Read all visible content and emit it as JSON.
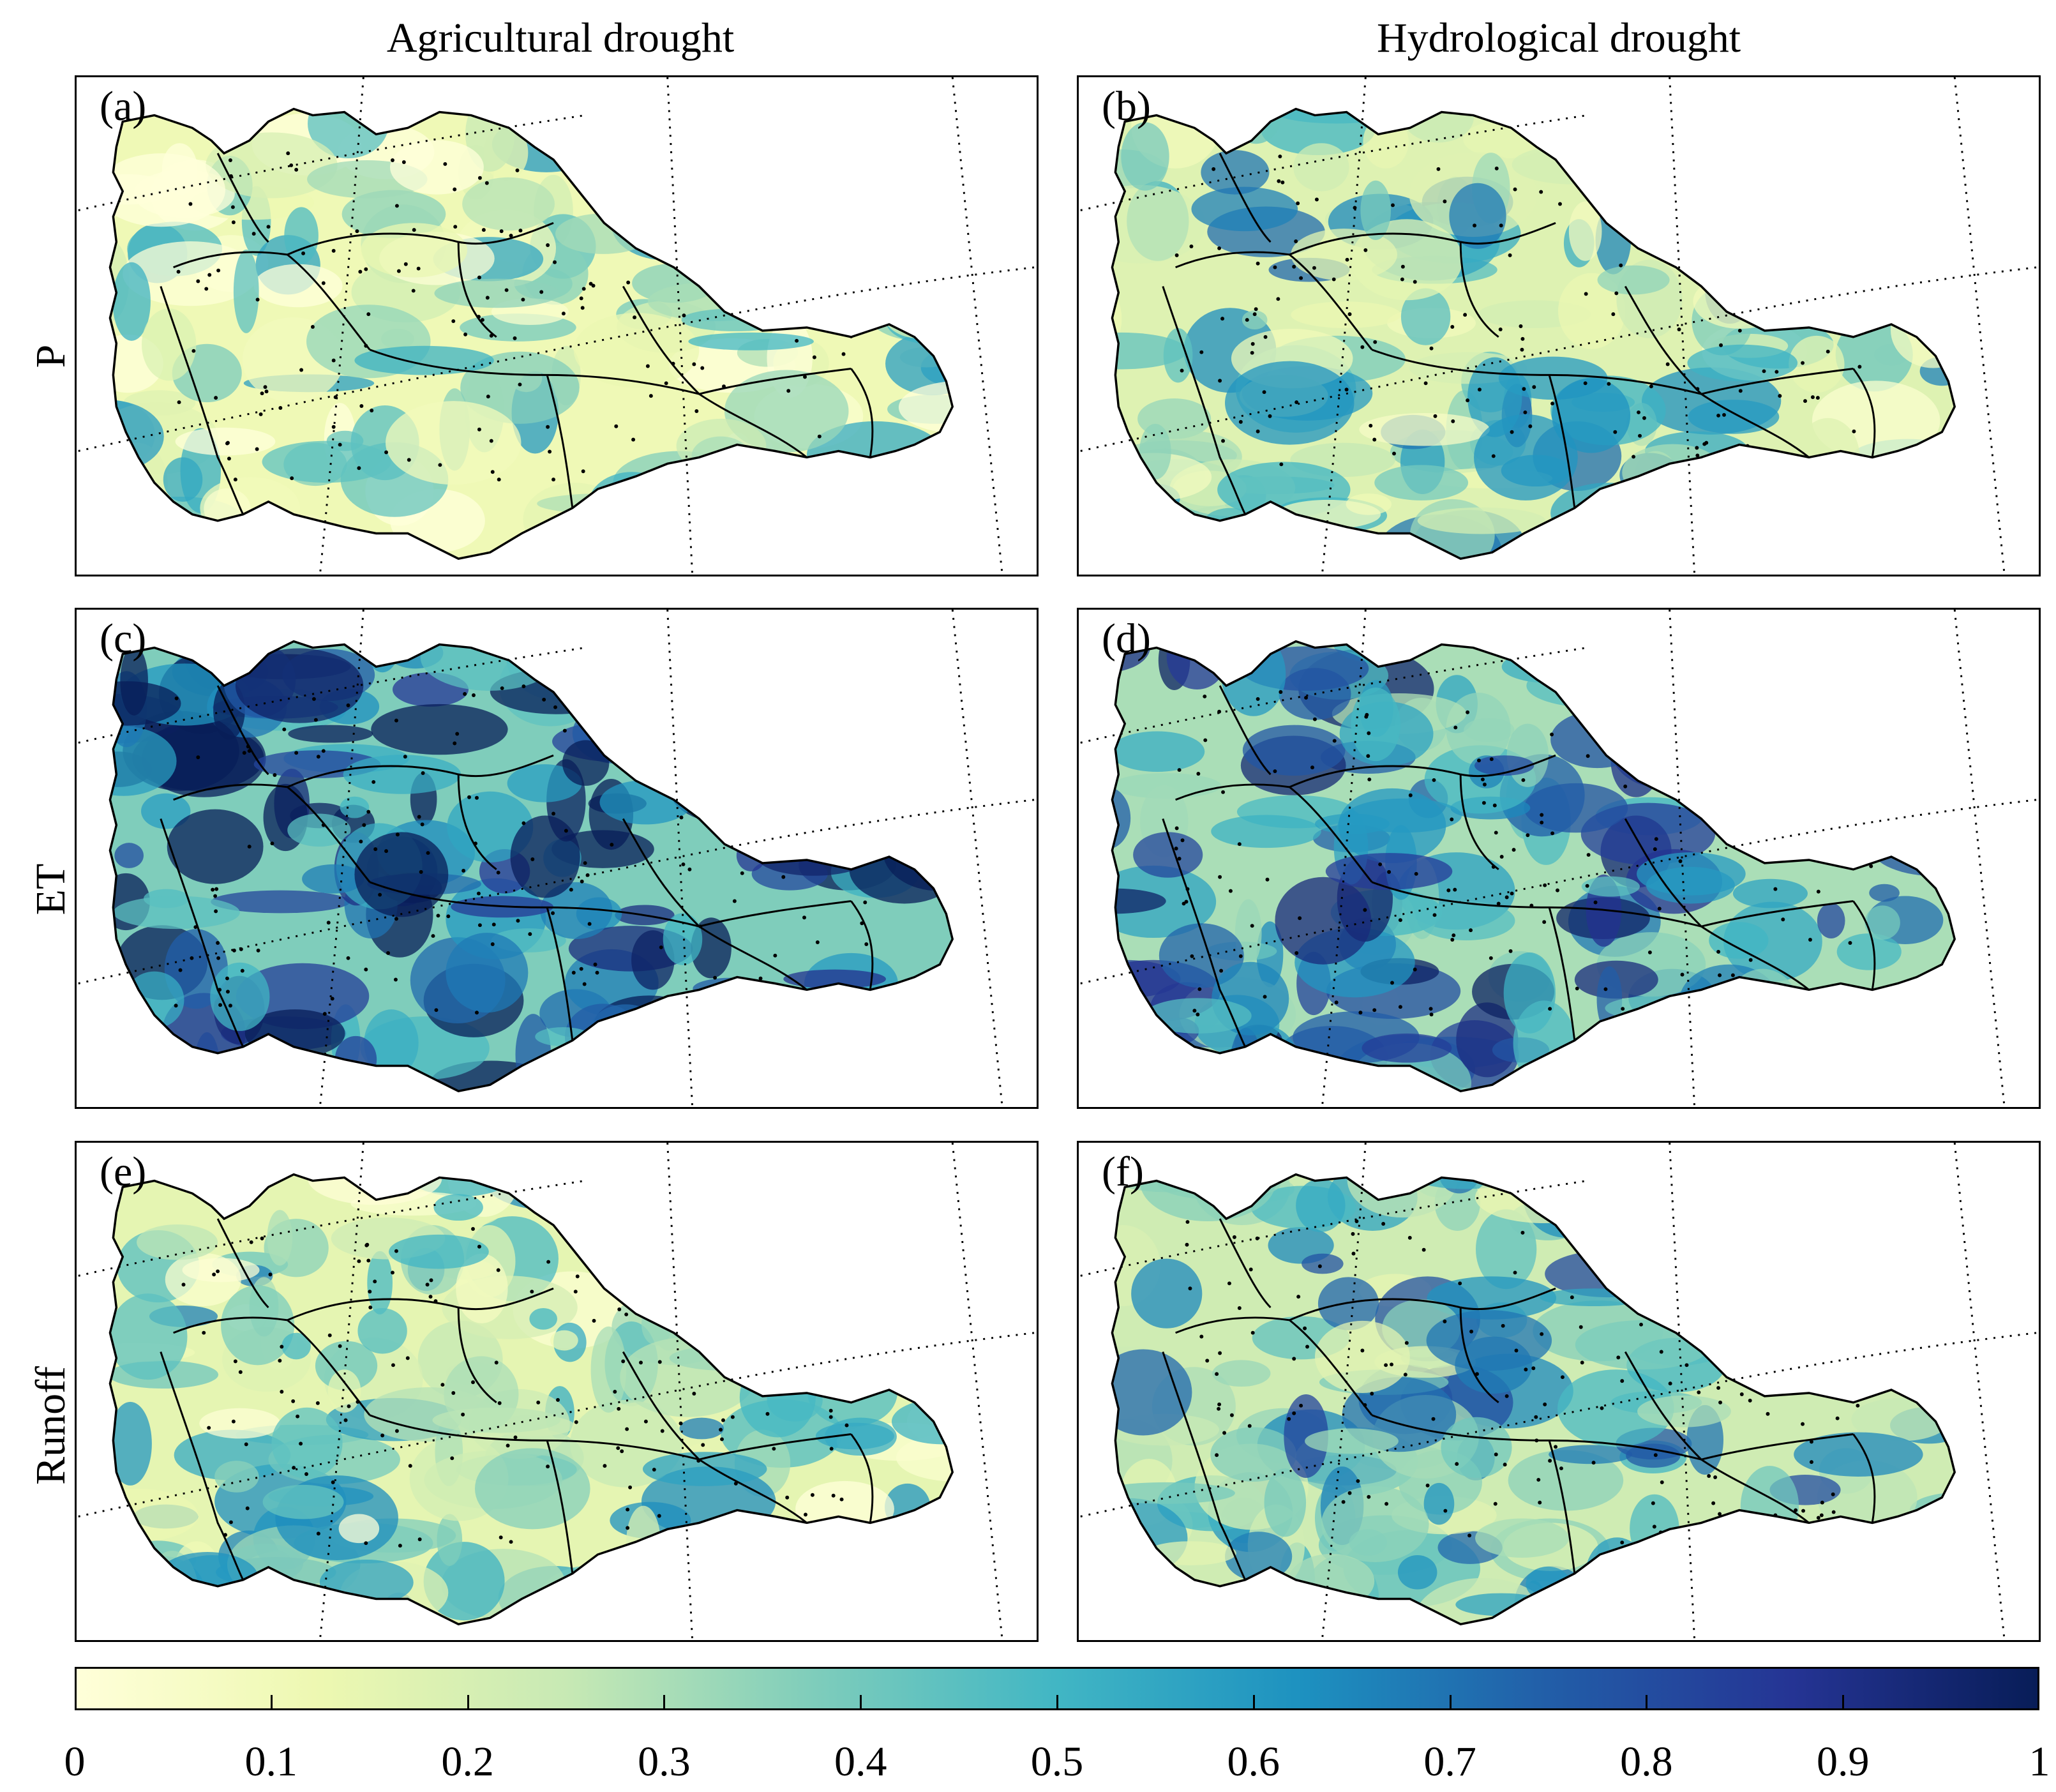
{
  "columns": {
    "agricultural": "Agricultural drought",
    "hydrological": "Hydrological drought"
  },
  "rows": {
    "p": "P",
    "et": "ET",
    "runoff": "Runoff"
  },
  "panels": [
    {
      "id": "a",
      "label": "(a)",
      "column": "Agricultural drought",
      "row": "P",
      "overall_level": 0.22
    },
    {
      "id": "b",
      "label": "(b)",
      "column": "Hydrological drought",
      "row": "P",
      "overall_level": 0.35
    },
    {
      "id": "c",
      "label": "(c)",
      "column": "Agricultural drought",
      "row": "ET",
      "overall_level": 0.75
    },
    {
      "id": "d",
      "label": "(d)",
      "column": "Hydrological drought",
      "row": "ET",
      "overall_level": 0.6
    },
    {
      "id": "e",
      "label": "(e)",
      "column": "Agricultural drought",
      "row": "Runoff",
      "overall_level": 0.3
    },
    {
      "id": "f",
      "label": "(f)",
      "column": "Hydrological drought",
      "row": "Runoff",
      "overall_level": 0.45
    }
  ],
  "colorbar": {
    "min": 0,
    "max": 1,
    "tick_labels": [
      "0",
      "0.1",
      "0.2",
      "0.3",
      "0.4",
      "0.5",
      "0.6",
      "0.7",
      "0.8",
      "0.9",
      "1"
    ],
    "colors": [
      "#ffffd9",
      "#edf8b1",
      "#c7e9b4",
      "#7fcdbb",
      "#41b6c4",
      "#1d91c0",
      "#225ea8",
      "#253494",
      "#081d58"
    ]
  },
  "styles": {
    "basin_outline": "#000000",
    "graticule": "#000000"
  }
}
